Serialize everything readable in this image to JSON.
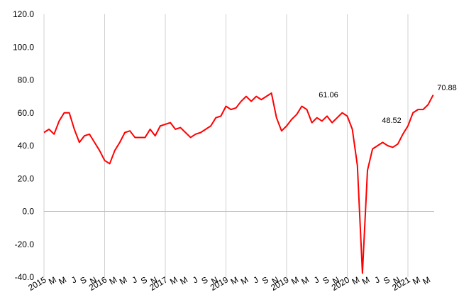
{
  "chart_data": {
    "type": "line",
    "categories": [
      "2015",
      null,
      "M",
      null,
      "M",
      null,
      "J",
      null,
      "S",
      null,
      "N",
      null,
      "2016",
      null,
      "M",
      null,
      "M",
      null,
      "J",
      null,
      "S",
      null,
      "N",
      null,
      "2017",
      null,
      "M",
      null,
      "M",
      null,
      "J",
      null,
      "S",
      null,
      "N",
      null,
      "2019",
      null,
      "M",
      null,
      "M",
      null,
      "J",
      null,
      "S",
      null,
      "N",
      null,
      "2019",
      null,
      "M",
      null,
      "M",
      null,
      "J",
      null,
      "S",
      null,
      "N",
      null,
      "2020",
      null,
      "M",
      null,
      "M",
      null,
      "J",
      null,
      "S",
      null,
      "N",
      null,
      "2021",
      null,
      "M",
      null,
      "M",
      null
    ],
    "series": [
      {
        "color": "#ff0000",
        "values": [
          48,
          50,
          47,
          55,
          60,
          60,
          50,
          42,
          46,
          47,
          42,
          37,
          31,
          29,
          37,
          42,
          48,
          49,
          45,
          45,
          45,
          50,
          46,
          52,
          53,
          54,
          50,
          51,
          48,
          45,
          47,
          48,
          50,
          52,
          57,
          58,
          64,
          62,
          63,
          67,
          70,
          67,
          70,
          68,
          70,
          72,
          57,
          49,
          52,
          56,
          59,
          64,
          62,
          54,
          57,
          55,
          58,
          54,
          57,
          60,
          58,
          50,
          28,
          -37.6,
          25,
          38,
          40,
          42,
          40,
          39,
          41,
          47,
          52,
          60,
          62,
          62,
          65,
          70.88
        ]
      }
    ],
    "ylim": [
      -40,
      120
    ],
    "yticks": [
      {
        "value": -40,
        "label": "-40.0"
      },
      {
        "value": -20,
        "label": "-20.0"
      },
      {
        "value": 0,
        "label": "0.0"
      },
      {
        "value": 20,
        "label": "20.0"
      },
      {
        "value": 40,
        "label": "40.0"
      },
      {
        "value": 60,
        "label": "60.0"
      },
      {
        "value": 80,
        "label": "80.0"
      },
      {
        "value": 100,
        "label": "100.0"
      },
      {
        "value": 120,
        "label": "120.0"
      }
    ],
    "annotations": [
      "61.06",
      "48.52",
      "70.88"
    ]
  }
}
